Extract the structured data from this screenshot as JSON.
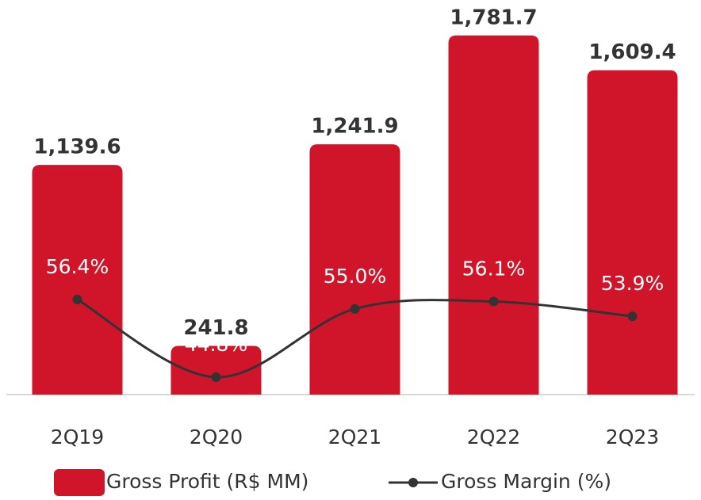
{
  "chart_data": {
    "type": "bar",
    "categories": [
      "2Q19",
      "2Q20",
      "2Q21",
      "2Q22",
      "2Q23"
    ],
    "series": [
      {
        "name": "Gross Profit (R$ MM)",
        "type": "bar",
        "color": "#d0152a",
        "values": [
          1139.6,
          241.8,
          1241.9,
          1781.7,
          1609.4
        ],
        "value_labels": [
          "1,139.6",
          "241.8",
          "1,241.9",
          "1,781.7",
          "1,609.4"
        ]
      },
      {
        "name": "Gross Margin (%)",
        "type": "line",
        "axis": "y2",
        "color": "#333333",
        "values": [
          56.4,
          44.8,
          55.0,
          56.1,
          53.9
        ],
        "value_labels": [
          "56.4%",
          "44.8%",
          "55.0%",
          "56.1%",
          "53.9%"
        ]
      }
    ],
    "ylim": [
      0,
      1950
    ],
    "y2lim": [
      42.2,
      100.9
    ]
  }
}
